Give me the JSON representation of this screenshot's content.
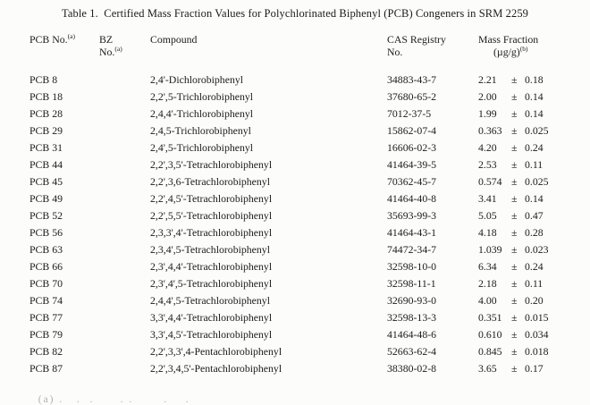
{
  "title": "Table 1.  Certified Mass Fraction Values for Polychlorinated Biphenyl (PCB) Congeners in SRM 2259",
  "table": {
    "plus_minus": "±",
    "headers": [
      {
        "name": "pcb-no",
        "lines": [
          [
            "PCB No.",
            "(a)"
          ]
        ]
      },
      {
        "name": "bz-no",
        "lines": [
          [
            "BZ",
            ""
          ],
          [
            "No.",
            "(a)"
          ]
        ]
      },
      {
        "name": "compound",
        "lines": [
          [
            "Compound",
            ""
          ]
        ]
      },
      {
        "name": "cas-registry",
        "lines": [
          [
            "CAS Registry",
            ""
          ],
          [
            "No.",
            ""
          ]
        ]
      },
      {
        "name": "mass-fraction",
        "lines": [
          [
            "Mass Fraction",
            ""
          ],
          [
            "(µg/g)",
            "(b)"
          ]
        ]
      }
    ],
    "rows": [
      {
        "pcb": "PCB 8",
        "bz": "",
        "compound": "2,4'-Dichlorobiphenyl",
        "cas": "34883-43-7",
        "value": "2.21",
        "uncertainty": "0.18"
      },
      {
        "pcb": "PCB 18",
        "bz": "",
        "compound": "2,2',5-Trichlorobiphenyl",
        "cas": "37680-65-2",
        "value": "2.00",
        "uncertainty": "0.14"
      },
      {
        "pcb": "PCB 28",
        "bz": "",
        "compound": "2,4,4'-Trichlorobiphenyl",
        "cas": "7012-37-5",
        "value": "1.99",
        "uncertainty": "0.14"
      },
      {
        "pcb": "PCB 29",
        "bz": "",
        "compound": "2,4,5-Trichlorobiphenyl",
        "cas": "15862-07-4",
        "value": "0.363",
        "uncertainty": "0.025"
      },
      {
        "pcb": "PCB 31",
        "bz": "",
        "compound": "2,4',5-Trichlorobiphenyl",
        "cas": "16606-02-3",
        "value": "4.20",
        "uncertainty": "0.24"
      },
      {
        "pcb": "PCB 44",
        "bz": "",
        "compound": "2,2',3,5'-Tetrachlorobiphenyl",
        "cas": "41464-39-5",
        "value": "2.53",
        "uncertainty": "0.11"
      },
      {
        "pcb": "PCB 45",
        "bz": "",
        "compound": "2,2',3,6-Tetrachlorobiphenyl",
        "cas": "70362-45-7",
        "value": "0.574",
        "uncertainty": "0.025"
      },
      {
        "pcb": "PCB 49",
        "bz": "",
        "compound": "2,2',4,5'-Tetrachlorobiphenyl",
        "cas": "41464-40-8",
        "value": "3.41",
        "uncertainty": "0.14"
      },
      {
        "pcb": "PCB 52",
        "bz": "",
        "compound": "2,2',5,5'-Tetrachlorobiphenyl",
        "cas": "35693-99-3",
        "value": "5.05",
        "uncertainty": "0.47"
      },
      {
        "pcb": "PCB 56",
        "bz": "",
        "compound": "2,3,3',4'-Tetrachlorobiphenyl",
        "cas": "41464-43-1",
        "value": "4.18",
        "uncertainty": "0.28"
      },
      {
        "pcb": "PCB 63",
        "bz": "",
        "compound": "2,3,4',5-Tetrachlorobiphenyl",
        "cas": "74472-34-7",
        "value": "1.039",
        "uncertainty": "0.023"
      },
      {
        "pcb": "PCB 66",
        "bz": "",
        "compound": "2,3',4,4'-Tetrachlorobiphenyl",
        "cas": "32598-10-0",
        "value": "6.34",
        "uncertainty": "0.24"
      },
      {
        "pcb": "PCB 70",
        "bz": "",
        "compound": "2,3',4',5-Tetrachlorobiphenyl",
        "cas": "32598-11-1",
        "value": "2.18",
        "uncertainty": "0.11"
      },
      {
        "pcb": "PCB 74",
        "bz": "",
        "compound": "2,4,4',5-Tetrachlorobiphenyl",
        "cas": "32690-93-0",
        "value": "4.00",
        "uncertainty": "0.20"
      },
      {
        "pcb": "PCB 77",
        "bz": "",
        "compound": "3,3',4,4'-Tetrachlorobiphenyl",
        "cas": "32598-13-3",
        "value": "0.351",
        "uncertainty": "0.015"
      },
      {
        "pcb": "PCB 79",
        "bz": "",
        "compound": "3,3',4,5'-Tetrachlorobiphenyl",
        "cas": "41464-48-6",
        "value": "0.610",
        "uncertainty": "0.034"
      },
      {
        "pcb": "PCB 82",
        "bz": "",
        "compound": "2,2',3,3',4-Pentachlorobiphenyl",
        "cas": "52663-62-4",
        "value": "0.845",
        "uncertainty": "0.018"
      },
      {
        "pcb": "PCB 87",
        "bz": "",
        "compound": "2,2',3,4,5'-Pentachlorobiphenyl",
        "cas": "38380-02-8",
        "value": "3.65",
        "uncertainty": "0.17"
      }
    ]
  },
  "footnote_fragment": "(a) .   .  .      . .       .    ."
}
